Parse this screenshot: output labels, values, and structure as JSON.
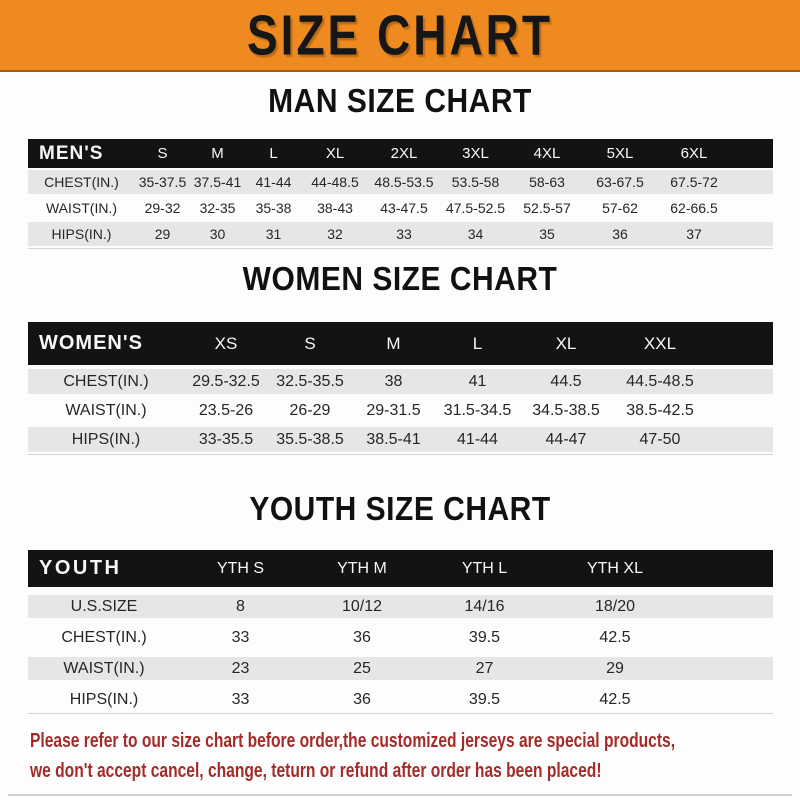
{
  "banner": {
    "title": "SIZE CHART",
    "bg_color": "#ee8a20",
    "text_color": "#161616"
  },
  "chart_data": [
    {
      "type": "table",
      "title": "MAN SIZE CHART",
      "corner_label": "MEN'S",
      "columns": [
        "S",
        "M",
        "L",
        "XL",
        "2XL",
        "3XL",
        "4XL",
        "5XL",
        "6XL"
      ],
      "rows": [
        {
          "label": "CHEST(IN.)",
          "values": [
            "35-37.5",
            "37.5-41",
            "41-44",
            "44-48.5",
            "48.5-53.5",
            "53.5-58",
            "58-63",
            "63-67.5",
            "67.5-72"
          ]
        },
        {
          "label": "WAIST(IN.)",
          "values": [
            "29-32",
            "32-35",
            "35-38",
            "38-43",
            "43-47.5",
            "47.5-52.5",
            "52.5-57",
            "57-62",
            "62-66.5"
          ]
        },
        {
          "label": "HIPS(IN.)",
          "values": [
            "29",
            "30",
            "31",
            "32",
            "33",
            "34",
            "35",
            "36",
            "37"
          ]
        }
      ]
    },
    {
      "type": "table",
      "title": "WOMEN SIZE CHART",
      "corner_label": "WOMEN'S",
      "columns": [
        "XS",
        "S",
        "M",
        "L",
        "XL",
        "XXL"
      ],
      "rows": [
        {
          "label": "CHEST(IN.)",
          "values": [
            "29.5-32.5",
            "32.5-35.5",
            "38",
            "41",
            "44.5",
            "44.5-48.5"
          ]
        },
        {
          "label": "WAIST(IN.)",
          "values": [
            "23.5-26",
            "26-29",
            "29-31.5",
            "31.5-34.5",
            "34.5-38.5",
            "38.5-42.5"
          ]
        },
        {
          "label": "HIPS(IN.)",
          "values": [
            "33-35.5",
            "35.5-38.5",
            "38.5-41",
            "41-44",
            "44-47",
            "47-50"
          ]
        }
      ]
    },
    {
      "type": "table",
      "title": "YOUTH SIZE CHART",
      "corner_label": "YOUTH",
      "columns": [
        "YTH S",
        "YTH M",
        "YTH L",
        "YTH XL"
      ],
      "rows": [
        {
          "label": "U.S.SIZE",
          "values": [
            "8",
            "10/12",
            "14/16",
            "18/20"
          ]
        },
        {
          "label": "CHEST(IN.)",
          "values": [
            "33",
            "36",
            "39.5",
            "42.5"
          ]
        },
        {
          "label": "WAIST(IN.)",
          "values": [
            "23",
            "25",
            "27",
            "29"
          ]
        },
        {
          "label": "HIPS(IN.)",
          "values": [
            "33",
            "36",
            "39.5",
            "42.5"
          ]
        }
      ]
    }
  ],
  "footer": {
    "line1": "Please refer to our size chart before order,the customized jerseys are special products,",
    "line2": "we don't accept cancel, change, teturn or refund after order has been placed!",
    "text_color": "#a32c2a"
  }
}
